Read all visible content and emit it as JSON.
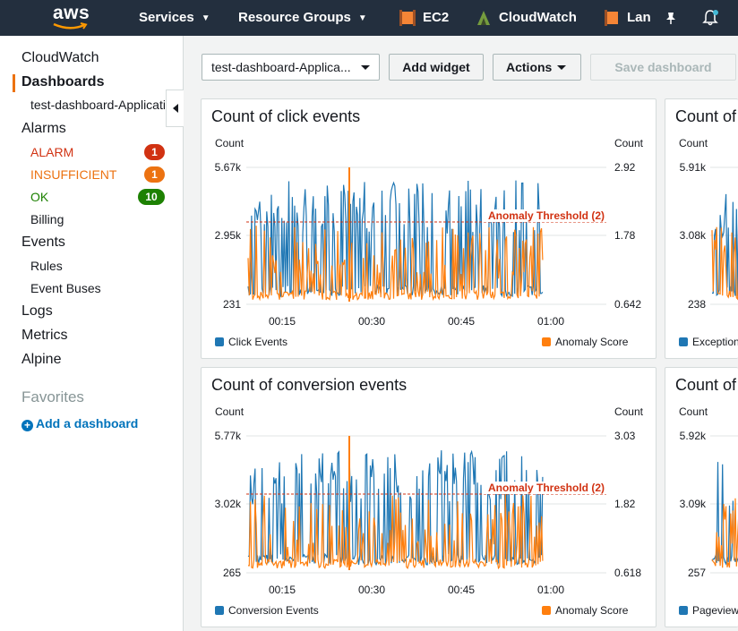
{
  "nav": {
    "logo": "aws",
    "services": "Services",
    "resource_groups": "Resource Groups",
    "ec2": "EC2",
    "cloudwatch": "CloudWatch",
    "lambda": "Lan"
  },
  "sidebar": {
    "cloudwatch": "CloudWatch",
    "dashboards": "Dashboards",
    "dashboard_item": "test-dashboard-ApplicationMetrics",
    "alarms": "Alarms",
    "alarm": {
      "label": "ALARM",
      "count": "1"
    },
    "insufficient": {
      "label": "INSUFFICIENT",
      "count": "1"
    },
    "ok": {
      "label": "OK",
      "count": "10"
    },
    "billing": "Billing",
    "events": "Events",
    "rules": "Rules",
    "event_buses": "Event Buses",
    "logs": "Logs",
    "metrics": "Metrics",
    "alpine": "Alpine",
    "favorites": "Favorites",
    "add_dashboard": "Add a dashboard"
  },
  "toolbar": {
    "dashboard_select": "test-dashboard-Applica...",
    "add_widget": "Add widget",
    "actions": "Actions",
    "save_dashboard": "Save dashboard"
  },
  "colors": {
    "nav_bg": "#232f3e",
    "accent": "#ec7211",
    "alarm": "#d13212",
    "ok": "#1d8102",
    "link": "#0073bb",
    "series_blue": "#1f77b4",
    "series_orange": "#ff7f0e"
  },
  "widgets": [
    {
      "title": "Count of click events",
      "left_unit": "Count",
      "right_unit": "Count",
      "left_ticks": [
        "5.67k",
        "2.95k",
        "231"
      ],
      "right_ticks": [
        "2.92",
        "1.78",
        "0.642"
      ],
      "x_ticks": [
        "00:15",
        "00:30",
        "00:45",
        "01:00"
      ],
      "threshold_label": "Anomaly Threshold (2)",
      "legend_left": "Click Events",
      "legend_right": "Anomaly Score"
    },
    {
      "title": "Count of conversion events",
      "left_unit": "Count",
      "right_unit": "Count",
      "left_ticks": [
        "5.77k",
        "3.02k",
        "265"
      ],
      "right_ticks": [
        "3.03",
        "1.82",
        "0.618"
      ],
      "x_ticks": [
        "00:15",
        "00:30",
        "00:45",
        "01:00"
      ],
      "threshold_label": "Anomaly Threshold (2)",
      "legend_left": "Conversion Events",
      "legend_right": "Anomaly Score"
    },
    {
      "title": "Count of",
      "left_unit": "Count",
      "left_ticks": [
        "5.91k",
        "3.08k",
        "238"
      ],
      "legend_left": "Exception"
    },
    {
      "title": "Count of",
      "left_unit": "Count",
      "left_ticks": [
        "5.92k",
        "3.09k",
        "257"
      ],
      "legend_left": "Pageview"
    }
  ]
}
